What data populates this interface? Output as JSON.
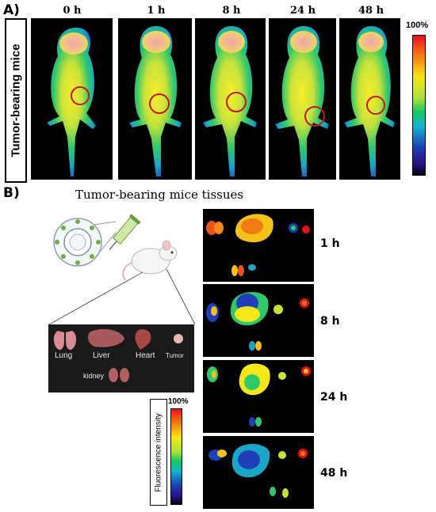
{
  "panel_a": {
    "label": "A)",
    "side_label": "Tumor-bearing mice",
    "timepoints": [
      "0 h",
      "1 h",
      "8 h",
      "24 h",
      "48 h"
    ],
    "scale_max": "100%"
  },
  "panel_b": {
    "label": "B)",
    "title": "Tumor-bearing mice tissues",
    "organs": [
      "Lung",
      "Liver",
      "Heart",
      "Tumor",
      "kidney"
    ],
    "timepoints": [
      "1 h",
      "8 h",
      "24 h",
      "48 h"
    ],
    "scale_max": "100%",
    "scale_label": "Fluorescence intensity"
  },
  "colors": {
    "heatmap_high": "#e8101e",
    "heatmap_mid": "#f7e615",
    "heatmap_low": "#1e3fb5",
    "background": "#000000",
    "tumor_circle": "#c0182a"
  }
}
